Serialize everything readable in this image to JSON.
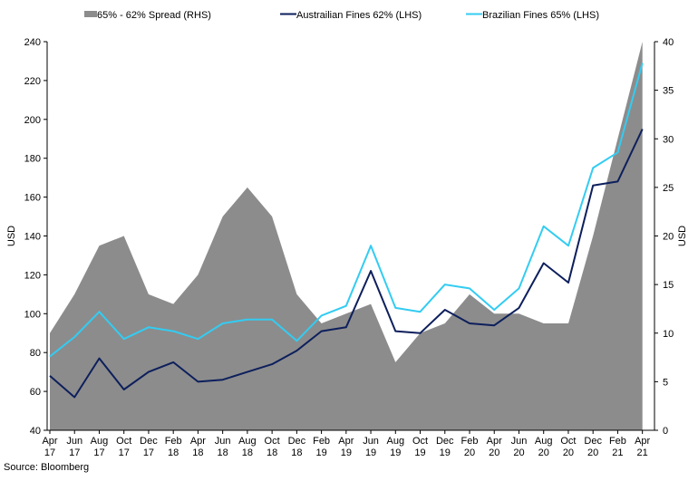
{
  "chart_data": {
    "type": "area+line",
    "legend": [
      {
        "name": "65% - 62% Spread (RHS)",
        "style": "area",
        "color": "#8c8c8c"
      },
      {
        "name": "Austrailian Fines 62% (LHS)",
        "style": "line",
        "color": "#0d1f5c"
      },
      {
        "name": "Brazilian Fines 65% (LHS)",
        "style": "line",
        "color": "#33ccf2"
      }
    ],
    "legend_position": "top",
    "ylabel_left": "USD",
    "ylabel_right": "USD",
    "ylim_left": [
      40,
      240
    ],
    "ylim_right": [
      0,
      40
    ],
    "yticks_left": [
      40,
      60,
      80,
      100,
      120,
      140,
      160,
      180,
      200,
      220,
      240
    ],
    "yticks_right": [
      0,
      5,
      10,
      15,
      20,
      25,
      30,
      35,
      40
    ],
    "x_ticks": [
      [
        "Apr",
        "17"
      ],
      [
        "Jun",
        "17"
      ],
      [
        "Aug",
        "17"
      ],
      [
        "Oct",
        "17"
      ],
      [
        "Dec",
        "17"
      ],
      [
        "Feb",
        "18"
      ],
      [
        "Apr",
        "18"
      ],
      [
        "Jun",
        "18"
      ],
      [
        "Aug",
        "18"
      ],
      [
        "Oct",
        "18"
      ],
      [
        "Dec",
        "18"
      ],
      [
        "Feb",
        "19"
      ],
      [
        "Apr",
        "19"
      ],
      [
        "Jun",
        "19"
      ],
      [
        "Aug",
        "19"
      ],
      [
        "Oct",
        "19"
      ],
      [
        "Dec",
        "19"
      ],
      [
        "Feb",
        "20"
      ],
      [
        "Apr",
        "20"
      ],
      [
        "Jun",
        "20"
      ],
      [
        "Aug",
        "20"
      ],
      [
        "Oct",
        "20"
      ],
      [
        "Dec",
        "20"
      ],
      [
        "Feb",
        "21"
      ],
      [
        "Apr",
        "21"
      ]
    ],
    "x_dates": [
      "2017-04",
      "2017-06",
      "2017-08",
      "2017-10",
      "2017-12",
      "2018-02",
      "2018-04",
      "2018-06",
      "2018-08",
      "2018-10",
      "2018-12",
      "2019-02",
      "2019-04",
      "2019-06",
      "2019-08",
      "2019-10",
      "2019-12",
      "2020-02",
      "2020-04",
      "2020-06",
      "2020-08",
      "2020-10",
      "2020-12",
      "2021-02",
      "2021-04"
    ],
    "spread_rhs": [
      10,
      14,
      19,
      20,
      14,
      13,
      16,
      22,
      25,
      22,
      14,
      11,
      12,
      13,
      7,
      10,
      11,
      14,
      12,
      12,
      11,
      11,
      20,
      30,
      40
    ],
    "australian_62_lhs": [
      68,
      57,
      77,
      61,
      70,
      75,
      65,
      66,
      70,
      74,
      81,
      91,
      93,
      122,
      91,
      90,
      102,
      95,
      94,
      103,
      126,
      116,
      166,
      168,
      195
    ],
    "brazilian_65_lhs": [
      78,
      88,
      101,
      87,
      93,
      91,
      87,
      95,
      97,
      97,
      86,
      99,
      104,
      135,
      103,
      101,
      115,
      113,
      102,
      113,
      145,
      135,
      175,
      183,
      229
    ]
  },
  "source": "Source: Bloomberg"
}
